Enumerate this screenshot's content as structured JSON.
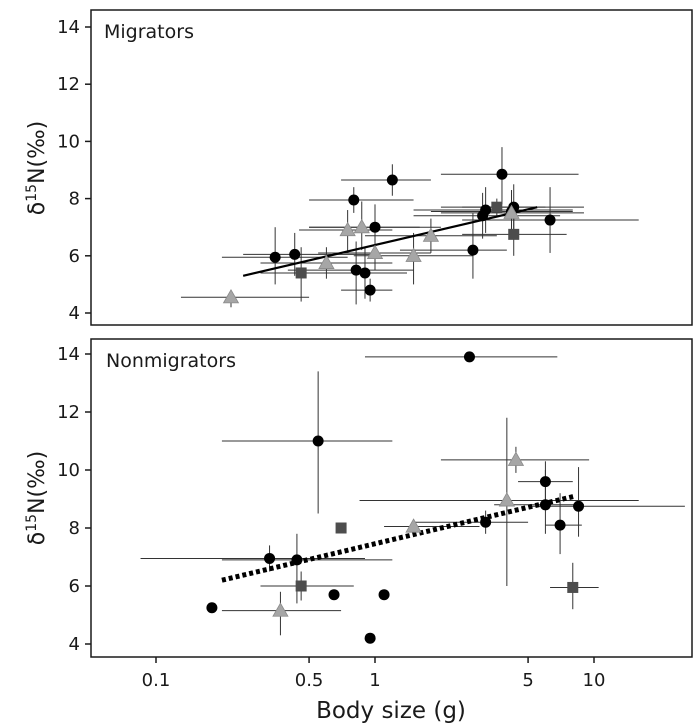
{
  "chart_data": [
    {
      "type": "scatter",
      "title": "Migrators",
      "xlabel": "",
      "ylabel": "δ15N(‰)",
      "x_scale": "log",
      "xlim": [
        0.045,
        32
      ],
      "ylim": [
        3.7,
        14.4
      ],
      "yticks": [
        4,
        6,
        8,
        10,
        12,
        14
      ],
      "trend": {
        "style": "solid",
        "x": [
          0.25,
          5.5
        ],
        "y": [
          5.3,
          7.7
        ]
      },
      "points": [
        {
          "marker": "circle",
          "x": 0.35,
          "y": 5.95,
          "xerr": [
            0.2,
            0.75
          ],
          "yerr": [
            5.0,
            7.0
          ]
        },
        {
          "marker": "circle",
          "x": 0.43,
          "y": 6.05,
          "xerr": [
            0.25,
            1.0
          ],
          "yerr": [
            5.3,
            6.8
          ]
        },
        {
          "marker": "circle",
          "x": 0.8,
          "y": 7.95,
          "xerr": [
            0.5,
            1.5
          ],
          "yerr": [
            7.5,
            8.4
          ]
        },
        {
          "marker": "circle",
          "x": 1.2,
          "y": 8.65,
          "xerr": [
            0.7,
            1.8
          ],
          "yerr": [
            8.1,
            9.2
          ]
        },
        {
          "marker": "circle",
          "x": 0.82,
          "y": 5.5,
          "xerr": [
            0.4,
            1.5
          ],
          "yerr": [
            4.3,
            6.5
          ]
        },
        {
          "marker": "circle",
          "x": 0.9,
          "y": 5.4,
          "xerr": [
            0.5,
            1.4
          ],
          "yerr": [
            4.5,
            6.3
          ]
        },
        {
          "marker": "circle",
          "x": 1.0,
          "y": 7.0,
          "xerr": [
            0.5,
            2.0
          ],
          "yerr": [
            6.2,
            7.8
          ]
        },
        {
          "marker": "circle",
          "x": 0.95,
          "y": 4.8,
          "xerr": [
            0.7,
            1.2
          ],
          "yerr": [
            4.4,
            5.2
          ]
        },
        {
          "marker": "circle",
          "x": 2.8,
          "y": 6.2,
          "xerr": [
            1.3,
            4.0
          ],
          "yerr": [
            5.2,
            7.5
          ]
        },
        {
          "marker": "circle",
          "x": 3.1,
          "y": 7.4,
          "xerr": [
            1.5,
            7.0
          ],
          "yerr": [
            6.6,
            8.2
          ]
        },
        {
          "marker": "circle",
          "x": 3.2,
          "y": 7.6,
          "xerr": [
            1.5,
            8.0
          ],
          "yerr": [
            6.8,
            8.4
          ]
        },
        {
          "marker": "circle",
          "x": 3.8,
          "y": 8.85,
          "xerr": [
            2.0,
            8.5
          ],
          "yerr": [
            7.8,
            9.8
          ]
        },
        {
          "marker": "circle",
          "x": 4.2,
          "y": 7.55,
          "xerr": [
            1.8,
            8.0
          ],
          "yerr": [
            6.8,
            8.3
          ]
        },
        {
          "marker": "circle",
          "x": 4.3,
          "y": 7.7,
          "xerr": [
            2.5,
            9.0
          ],
          "yerr": [
            6.9,
            8.5
          ]
        },
        {
          "marker": "circle",
          "x": 6.3,
          "y": 7.25,
          "xerr": [
            2.5,
            16.0
          ],
          "yerr": [
            6.1,
            8.4
          ]
        },
        {
          "marker": "triangle",
          "x": 0.22,
          "y": 4.55,
          "xerr": [
            0.13,
            0.5
          ],
          "yerr": [
            4.2,
            4.8
          ]
        },
        {
          "marker": "triangle",
          "x": 0.6,
          "y": 5.75,
          "xerr": [
            0.3,
            1.2
          ],
          "yerr": [
            5.2,
            6.3
          ]
        },
        {
          "marker": "triangle",
          "x": 0.75,
          "y": 6.9,
          "xerr": [
            0.45,
            1.2
          ],
          "yerr": [
            6.1,
            7.6
          ]
        },
        {
          "marker": "triangle",
          "x": 0.87,
          "y": 7.0,
          "xerr": [
            0.5,
            1.6
          ],
          "yerr": [
            6.2,
            7.9
          ]
        },
        {
          "marker": "triangle",
          "x": 1.0,
          "y": 6.1,
          "xerr": [
            0.55,
            1.8
          ],
          "yerr": [
            5.5,
            6.7
          ]
        },
        {
          "marker": "triangle",
          "x": 1.8,
          "y": 6.7,
          "xerr": [
            0.9,
            3.6
          ],
          "yerr": [
            6.1,
            7.3
          ]
        },
        {
          "marker": "triangle",
          "x": 1.5,
          "y": 6.0,
          "xerr": [
            0.8,
            2.8
          ],
          "yerr": [
            5.0,
            6.8
          ]
        },
        {
          "marker": "triangle",
          "x": 4.2,
          "y": 7.5,
          "xerr": [
            2.0,
            9.0
          ],
          "yerr": [
            6.8,
            8.2
          ]
        },
        {
          "marker": "square",
          "x": 0.46,
          "y": 5.4,
          "xerr": [
            0.3,
            0.7
          ],
          "yerr": [
            4.4,
            6.3
          ]
        },
        {
          "marker": "square",
          "x": 3.6,
          "y": 7.7,
          "xerr": [
            2.0,
            6.0
          ],
          "yerr": [
            7.4,
            8.0
          ]
        },
        {
          "marker": "square",
          "x": 4.3,
          "y": 6.75,
          "xerr": [
            2.5,
            7.5
          ],
          "yerr": [
            6.0,
            7.5
          ]
        }
      ]
    },
    {
      "type": "scatter",
      "title": "Nonmigrators",
      "xlabel": "Body size (g)",
      "ylabel": "δ15N(‰)",
      "x_scale": "log",
      "xlim": [
        0.045,
        32
      ],
      "ylim": [
        3.7,
        14.4
      ],
      "yticks": [
        4,
        6,
        8,
        10,
        12,
        14
      ],
      "xticks": [
        0.1,
        0.5,
        1,
        5,
        10
      ],
      "xtick_labels": [
        "0.1",
        "0.5",
        "1",
        "5",
        "10"
      ],
      "trend": {
        "style": "dotted",
        "x": [
          0.2,
          8.2
        ],
        "y": [
          6.2,
          9.1
        ]
      },
      "points": [
        {
          "marker": "circle",
          "x": 0.18,
          "y": 5.25,
          "xerr": null,
          "yerr": null
        },
        {
          "marker": "circle",
          "x": 0.33,
          "y": 6.95,
          "xerr": [
            0.085,
            0.9
          ],
          "yerr": [
            6.5,
            7.4
          ]
        },
        {
          "marker": "circle",
          "x": 0.44,
          "y": 6.9,
          "xerr": [
            0.2,
            1.2
          ],
          "yerr": [
            5.4,
            7.8
          ]
        },
        {
          "marker": "circle",
          "x": 0.55,
          "y": 11.0,
          "xerr": [
            0.2,
            1.2
          ],
          "yerr": [
            8.5,
            13.4
          ]
        },
        {
          "marker": "circle",
          "x": 0.65,
          "y": 5.7,
          "xerr": null,
          "yerr": null
        },
        {
          "marker": "circle",
          "x": 0.95,
          "y": 4.2,
          "xerr": null,
          "yerr": null
        },
        {
          "marker": "circle",
          "x": 1.1,
          "y": 5.7,
          "xerr": null,
          "yerr": null
        },
        {
          "marker": "circle",
          "x": 2.7,
          "y": 13.9,
          "xerr": [
            0.9,
            6.8
          ],
          "yerr": null
        },
        {
          "marker": "circle",
          "x": 3.2,
          "y": 8.2,
          "xerr": [
            1.5,
            5.0
          ],
          "yerr": [
            7.8,
            8.6
          ]
        },
        {
          "marker": "circle",
          "x": 6.0,
          "y": 9.6,
          "xerr": [
            4.5,
            8.0
          ],
          "yerr": [
            8.9,
            10.3
          ]
        },
        {
          "marker": "circle",
          "x": 6.0,
          "y": 8.8,
          "xerr": [
            3.5,
            9.0
          ],
          "yerr": [
            7.8,
            10.0
          ]
        },
        {
          "marker": "circle",
          "x": 8.5,
          "y": 8.75,
          "xerr": [
            5.0,
            26.0
          ],
          "yerr": [
            7.7,
            10.1
          ]
        },
        {
          "marker": "circle",
          "x": 7.0,
          "y": 8.1,
          "xerr": [
            6.0,
            8.8
          ],
          "yerr": [
            7.1,
            9.2
          ]
        },
        {
          "marker": "triangle",
          "x": 0.37,
          "y": 5.15,
          "xerr": [
            0.2,
            0.7
          ],
          "yerr": [
            4.3,
            5.8
          ]
        },
        {
          "marker": "triangle",
          "x": 1.5,
          "y": 8.05,
          "xerr": [
            1.1,
            3.0
          ],
          "yerr": [
            7.8,
            8.3
          ]
        },
        {
          "marker": "triangle",
          "x": 4.0,
          "y": 8.95,
          "xerr": [
            0.85,
            16.0
          ],
          "yerr": [
            6.0,
            11.8
          ]
        },
        {
          "marker": "triangle",
          "x": 4.4,
          "y": 10.35,
          "xerr": [
            2.0,
            9.5
          ],
          "yerr": [
            9.9,
            10.8
          ]
        },
        {
          "marker": "square",
          "x": 0.46,
          "y": 6.0,
          "xerr": [
            0.3,
            0.8
          ],
          "yerr": [
            5.5,
            6.5
          ]
        },
        {
          "marker": "square",
          "x": 0.7,
          "y": 8.0,
          "xerr": null,
          "yerr": null
        },
        {
          "marker": "square",
          "x": 8.0,
          "y": 5.95,
          "xerr": [
            6.3,
            10.5
          ],
          "yerr": [
            5.2,
            6.8
          ]
        }
      ]
    }
  ],
  "colors": {
    "circle": "#000000",
    "triangle": "#a6a6a6",
    "square": "#4d4d4d",
    "axis": "#1a1a1a"
  }
}
